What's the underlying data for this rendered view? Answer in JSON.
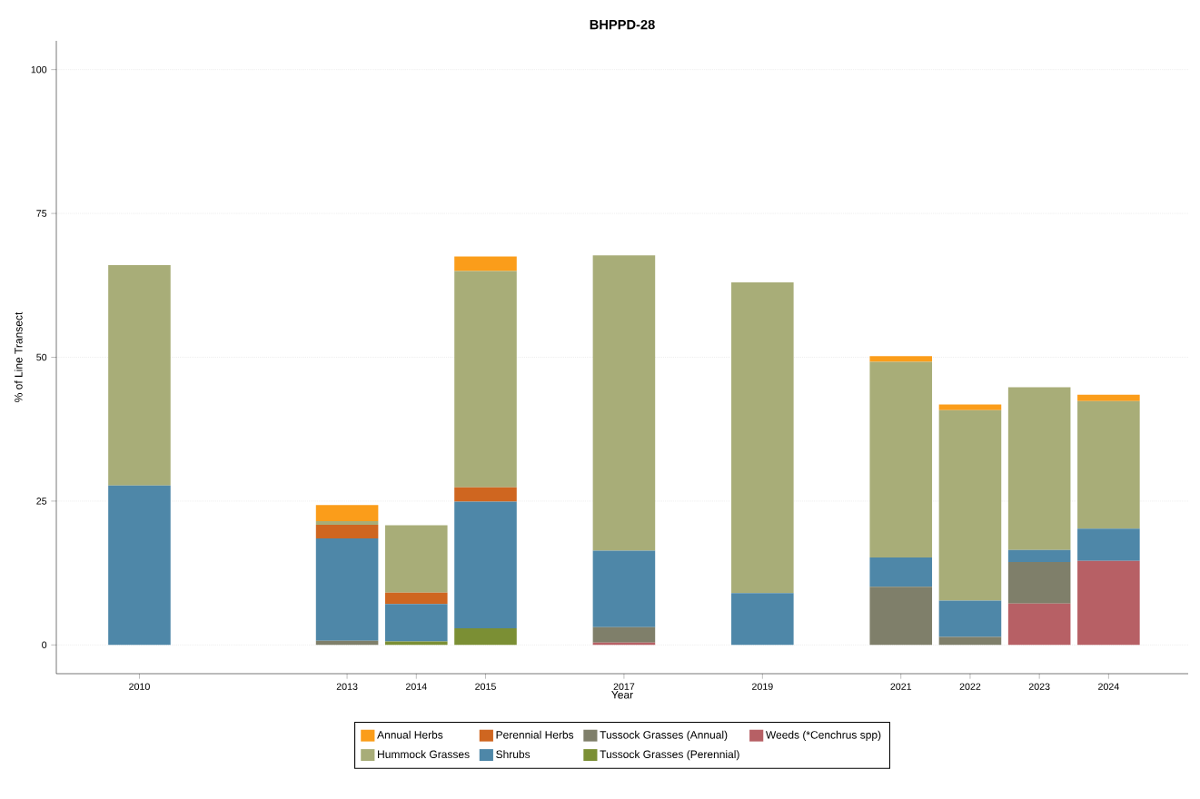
{
  "chart_data": {
    "type": "bar",
    "title": "BHPPD-28",
    "xlabel": "Year",
    "ylabel": "% of Line Transect",
    "stacked": true,
    "x": [
      2010,
      2013,
      2014,
      2015,
      2017,
      2019,
      2021,
      2022,
      2023,
      2024
    ],
    "series": [
      {
        "name": "Weeds (*Cenchrus spp)",
        "color": "#b76065",
        "values": [
          null,
          null,
          null,
          null,
          0.4,
          null,
          null,
          null,
          7.2,
          14.6
        ]
      },
      {
        "name": "Tussock Grasses (Perennial)",
        "color": "#7b8f34",
        "values": [
          null,
          null,
          0.6,
          2.9,
          null,
          null,
          null,
          null,
          null,
          null
        ]
      },
      {
        "name": "Tussock Grasses (Annual)",
        "color": "#7f7f6a",
        "values": [
          null,
          0.7,
          null,
          null,
          2.7,
          null,
          10.1,
          1.4,
          7.2,
          null
        ]
      },
      {
        "name": "Shrubs",
        "color": "#4e87a8",
        "values": [
          27.7,
          17.8,
          6.5,
          22.0,
          13.3,
          9.0,
          5.1,
          6.3,
          2.1,
          5.6
        ]
      },
      {
        "name": "Perennial Herbs",
        "color": "#cf6620",
        "values": [
          null,
          2.4,
          2.0,
          2.5,
          null,
          null,
          null,
          null,
          null,
          null
        ]
      },
      {
        "name": "Hummock Grasses",
        "color": "#a8ad78",
        "values": [
          38.3,
          0.6,
          11.7,
          37.6,
          51.3,
          54.0,
          34.0,
          33.1,
          28.3,
          22.2
        ]
      },
      {
        "name": "Annual Herbs",
        "color": "#fb9d1a",
        "values": [
          null,
          2.8,
          null,
          2.5,
          null,
          null,
          1.0,
          1.0,
          null,
          1.1
        ]
      }
    ],
    "xlim": [
      2008.8,
      2025.15
    ],
    "xticks": [
      2010,
      2013,
      2014,
      2015,
      2017,
      2019,
      2021,
      2022,
      2023,
      2024
    ],
    "ylim": [
      -5,
      105
    ],
    "yticks": [
      0,
      25,
      50,
      75,
      100
    ],
    "grid": "y",
    "legend": "bottom"
  }
}
